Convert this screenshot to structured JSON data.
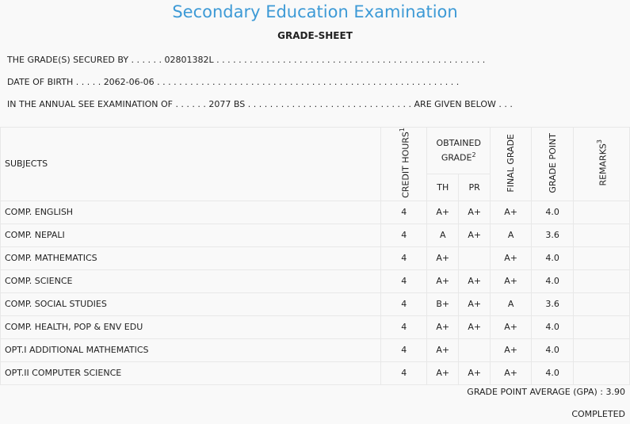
{
  "header": {
    "title": "Secondary Education Examination",
    "subtitle": "GRADE-SHEET"
  },
  "info": {
    "line1_prefix": "THE GRADE(S) SECURED BY . . . . . . ",
    "symbol_no": "02801382L",
    "line1_suffix": " . . . . . . . . . . . . . . . . . . . . . . . . . . . . . . . . . . . . . . . . . . . . . . . . .",
    "line2_prefix": "DATE OF BIRTH . . . . . ",
    "dob": "2062-06-06",
    "line2_suffix": " . . . . . . . . . . . . . . . . . . . . . . . . . . . . . . . . . . . . . . . . . . . . . . . . . . . . . . .",
    "line3_prefix": "IN THE ANNUAL SEE EXAMINATION OF . . . . . . ",
    "exam_year": "2077 BS",
    "line3_suffix": " . . . . . . . . . . . . . . . . . . . . . . . . . . . . . . ARE GIVEN BELOW . . ."
  },
  "table_headers": {
    "subjects": "SUBJECTS",
    "credit_hours": "CREDIT HOURS",
    "credit_sup": "1",
    "obtained_grade": "OBTAINED GRADE",
    "obtained_sup": "2",
    "th": "TH",
    "pr": "PR",
    "final_grade": "FINAL GRADE",
    "grade_point": "GRADE POINT",
    "remarks": "REMARKS",
    "remarks_sup": "3"
  },
  "rows": [
    {
      "subject": "COMP. ENGLISH",
      "credit": "4",
      "th": "A+",
      "pr": "A+",
      "final": "A+",
      "gp": "4.0",
      "remarks": ""
    },
    {
      "subject": "COMP. NEPALI",
      "credit": "4",
      "th": "A",
      "pr": "A+",
      "final": "A",
      "gp": "3.6",
      "remarks": ""
    },
    {
      "subject": "COMP. MATHEMATICS",
      "credit": "4",
      "th": "A+",
      "pr": "",
      "final": "A+",
      "gp": "4.0",
      "remarks": ""
    },
    {
      "subject": "COMP. SCIENCE",
      "credit": "4",
      "th": "A+",
      "pr": "A+",
      "final": "A+",
      "gp": "4.0",
      "remarks": ""
    },
    {
      "subject": "COMP. SOCIAL STUDIES",
      "credit": "4",
      "th": "B+",
      "pr": "A+",
      "final": "A",
      "gp": "3.6",
      "remarks": ""
    },
    {
      "subject": "COMP. HEALTH, POP & ENV EDU",
      "credit": "4",
      "th": "A+",
      "pr": "A+",
      "final": "A+",
      "gp": "4.0",
      "remarks": ""
    },
    {
      "subject": "OPT.I ADDITIONAL MATHEMATICS",
      "credit": "4",
      "th": "A+",
      "pr": "",
      "final": "A+",
      "gp": "4.0",
      "remarks": ""
    },
    {
      "subject": "OPT.II COMPUTER SCIENCE",
      "credit": "4",
      "th": "A+",
      "pr": "A+",
      "final": "A+",
      "gp": "4.0",
      "remarks": ""
    }
  ],
  "footer": {
    "gpa_label": "GRADE POINT AVERAGE (GPA) : ",
    "gpa_value": "3.90",
    "status": "COMPLETED"
  }
}
